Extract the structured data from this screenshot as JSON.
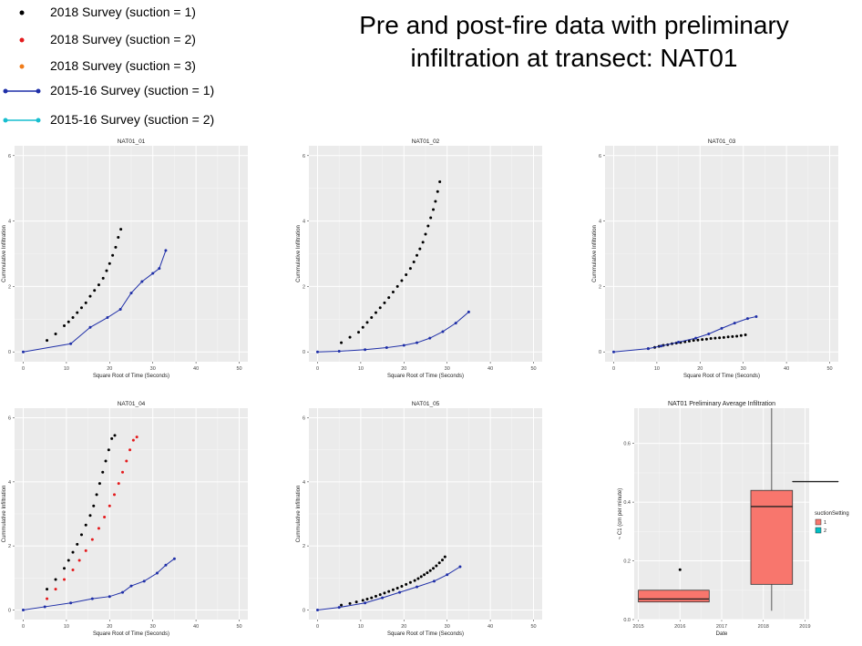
{
  "title": {
    "line1": "Pre and post-fire data with preliminary",
    "line2": "infiltration at transect: NAT01"
  },
  "legend": [
    {
      "label": "2018 Survey (suction = 1)",
      "color": "#000000",
      "style": "dot"
    },
    {
      "label": "2018 Survey (suction = 2)",
      "color": "#e41a1c",
      "style": "dot"
    },
    {
      "label": "2018 Survey (suction = 3)",
      "color": "#f07c1a",
      "style": "dot"
    },
    {
      "label": "2015-16 Survey (suction = 1)",
      "color": "#1f2fa8",
      "style": "line"
    },
    {
      "label": "2015-16 Survey (suction = 2)",
      "color": "#17becf",
      "style": "line"
    }
  ],
  "chart_data": [
    {
      "type": "scatter",
      "title": "NAT01_01",
      "xlabel": "Square Root of Time (Seconds)",
      "ylabel": "Cummulative Infiltration",
      "xlim": [
        -2,
        52
      ],
      "ylim": [
        -0.3,
        6.3
      ],
      "xticks": [
        0,
        10,
        20,
        30,
        40,
        50
      ],
      "yticks": [
        0,
        2,
        4,
        6
      ],
      "series": [
        {
          "color": "#000000",
          "kind": "points",
          "x": [
            5.5,
            7.5,
            9.5,
            10.5,
            11.5,
            12.5,
            13.5,
            14.5,
            15.5,
            16.5,
            17.5,
            18.5,
            19.3,
            20.0,
            20.7,
            21.4,
            22.0,
            22.6
          ],
          "y": [
            0.35,
            0.55,
            0.8,
            0.92,
            1.05,
            1.2,
            1.35,
            1.5,
            1.7,
            1.88,
            2.05,
            2.25,
            2.48,
            2.7,
            2.95,
            3.2,
            3.5,
            3.75
          ]
        },
        {
          "color": "#1f2fa8",
          "kind": "line",
          "x": [
            0,
            11,
            15.5,
            19.5,
            22.5,
            25,
            27.5,
            30,
            31.5,
            33
          ],
          "y": [
            0.0,
            0.25,
            0.75,
            1.05,
            1.3,
            1.8,
            2.15,
            2.4,
            2.55,
            3.1
          ]
        }
      ]
    },
    {
      "type": "scatter",
      "title": "NAT01_02",
      "xlabel": "Square Root of Time (Seconds)",
      "ylabel": "Cummulative Infiltration",
      "xlim": [
        -2,
        52
      ],
      "ylim": [
        -0.3,
        6.3
      ],
      "xticks": [
        0,
        10,
        20,
        30,
        40,
        50
      ],
      "yticks": [
        0,
        2,
        4,
        6
      ],
      "series": [
        {
          "color": "#000000",
          "kind": "points",
          "x": [
            5.5,
            7.5,
            9.5,
            10.5,
            11.5,
            12.5,
            13.5,
            14.5,
            15.5,
            16.5,
            17.5,
            18.5,
            19.5,
            20.5,
            21.5,
            22.3,
            23.0,
            23.7,
            24.4,
            25.0,
            25.6,
            26.2,
            26.8,
            27.3,
            27.8,
            28.3
          ],
          "y": [
            0.28,
            0.45,
            0.6,
            0.75,
            0.9,
            1.05,
            1.2,
            1.35,
            1.5,
            1.66,
            1.83,
            2.0,
            2.18,
            2.36,
            2.55,
            2.75,
            2.95,
            3.15,
            3.35,
            3.6,
            3.85,
            4.1,
            4.35,
            4.6,
            4.9,
            5.2
          ]
        },
        {
          "color": "#1f2fa8",
          "kind": "line",
          "x": [
            0,
            5,
            11,
            16,
            20,
            23,
            26,
            29,
            32,
            35
          ],
          "y": [
            0.0,
            0.02,
            0.07,
            0.13,
            0.2,
            0.28,
            0.42,
            0.62,
            0.88,
            1.22
          ]
        }
      ]
    },
    {
      "type": "scatter",
      "title": "NAT01_03",
      "xlabel": "Square Root of Time (Seconds)",
      "ylabel": "Cummulative Infiltration",
      "xlim": [
        -2,
        52
      ],
      "ylim": [
        -0.3,
        6.3
      ],
      "xticks": [
        0,
        10,
        20,
        30,
        40,
        50
      ],
      "yticks": [
        0,
        2,
        4,
        6
      ],
      "series": [
        {
          "color": "#000000",
          "kind": "points",
          "x": [
            8,
            9.5,
            10.5,
            11.5,
            12.5,
            13.5,
            14.5,
            15.5,
            16.5,
            17.5,
            18.5,
            19.5,
            20.5,
            21.5,
            22.5,
            23.5,
            24.5,
            25.5,
            26.5,
            27.5,
            28.5,
            29.5,
            30.5
          ],
          "y": [
            0.1,
            0.14,
            0.17,
            0.2,
            0.22,
            0.25,
            0.27,
            0.29,
            0.31,
            0.33,
            0.35,
            0.36,
            0.38,
            0.39,
            0.41,
            0.42,
            0.43,
            0.44,
            0.46,
            0.47,
            0.48,
            0.5,
            0.52
          ]
        },
        {
          "color": "#1f2fa8",
          "kind": "line",
          "x": [
            0,
            8,
            11,
            15,
            19,
            22,
            25,
            28,
            31,
            33
          ],
          "y": [
            0.0,
            0.1,
            0.18,
            0.3,
            0.42,
            0.55,
            0.72,
            0.88,
            1.02,
            1.08
          ]
        }
      ]
    },
    {
      "type": "scatter",
      "title": "NAT01_04",
      "xlabel": "Square Root of Time (Seconds)",
      "ylabel": "Cummulative Infiltration",
      "xlim": [
        -2,
        52
      ],
      "ylim": [
        -0.3,
        6.3
      ],
      "xticks": [
        0,
        10,
        20,
        30,
        40,
        50
      ],
      "yticks": [
        0,
        2,
        4,
        6
      ],
      "series": [
        {
          "color": "#000000",
          "kind": "points",
          "x": [
            5.5,
            7.5,
            9.5,
            10.5,
            11.5,
            12.5,
            13.5,
            14.5,
            15.5,
            16.3,
            17.0,
            17.7,
            18.4,
            19.1,
            19.8,
            20.5,
            21.2
          ],
          "y": [
            0.65,
            0.95,
            1.3,
            1.55,
            1.8,
            2.05,
            2.35,
            2.65,
            2.95,
            3.25,
            3.6,
            3.95,
            4.3,
            4.65,
            5.0,
            5.35,
            5.45
          ]
        },
        {
          "color": "#e41a1c",
          "kind": "points",
          "x": [
            5.5,
            7.5,
            9.5,
            11.5,
            13,
            14.5,
            16,
            17.5,
            18.8,
            20.0,
            21.1,
            22.1,
            23.0,
            23.9,
            24.7,
            25.5,
            26.3
          ],
          "y": [
            0.35,
            0.65,
            0.95,
            1.25,
            1.55,
            1.85,
            2.2,
            2.55,
            2.9,
            3.25,
            3.6,
            3.95,
            4.3,
            4.65,
            5.0,
            5.3,
            5.4
          ]
        },
        {
          "color": "#1f2fa8",
          "kind": "line",
          "x": [
            0,
            5,
            11,
            16,
            20,
            23,
            25,
            28,
            31,
            33,
            35
          ],
          "y": [
            0.0,
            0.1,
            0.22,
            0.35,
            0.42,
            0.55,
            0.75,
            0.9,
            1.15,
            1.4,
            1.6
          ]
        }
      ]
    },
    {
      "type": "scatter",
      "title": "NAT01_05",
      "xlabel": "Square Root of Time (Seconds)",
      "ylabel": "Cummulative Infiltration",
      "xlim": [
        -2,
        52
      ],
      "ylim": [
        -0.3,
        6.3
      ],
      "xticks": [
        0,
        10,
        20,
        30,
        40,
        50
      ],
      "yticks": [
        0,
        2,
        4,
        6
      ],
      "series": [
        {
          "color": "#000000",
          "kind": "points",
          "x": [
            5.5,
            7.5,
            9.0,
            10.5,
            11.5,
            12.5,
            13.5,
            14.5,
            15.5,
            16.5,
            17.5,
            18.5,
            19.5,
            20.5,
            21.5,
            22.5,
            23.3,
            24.0,
            24.7,
            25.4,
            26.1,
            26.8,
            27.5,
            28.2,
            28.9,
            29.5
          ],
          "y": [
            0.15,
            0.2,
            0.25,
            0.3,
            0.34,
            0.38,
            0.43,
            0.48,
            0.53,
            0.58,
            0.63,
            0.68,
            0.74,
            0.8,
            0.86,
            0.92,
            0.98,
            1.04,
            1.1,
            1.16,
            1.23,
            1.3,
            1.38,
            1.47,
            1.56,
            1.66
          ]
        },
        {
          "color": "#1f2fa8",
          "kind": "line",
          "x": [
            0,
            5,
            11,
            15,
            19,
            23,
            27,
            30,
            33
          ],
          "y": [
            0.0,
            0.08,
            0.22,
            0.38,
            0.55,
            0.72,
            0.9,
            1.1,
            1.35
          ]
        }
      ]
    },
    {
      "type": "box",
      "title": "NAT01 Preliminary Average Infiltration",
      "xlabel": "Date",
      "ylabel": "~ C1 (cm per minute)",
      "xlim": [
        2014.9,
        2019.1
      ],
      "ylim": [
        0.0,
        0.72
      ],
      "xticks": [
        2015,
        2016,
        2017,
        2018,
        2019
      ],
      "yticks": [
        0.0,
        0.2,
        0.4,
        0.6
      ],
      "ytick_labels": [
        "0.0",
        "0.2",
        "0.4",
        "0.6"
      ],
      "legend_title": "suctionSetting",
      "legend_items": [
        {
          "label": "1",
          "color": "#f8766d"
        },
        {
          "label": "2",
          "color": "#00bfc4"
        }
      ],
      "boxes": [
        {
          "x_from": 2015.0,
          "x_to": 2016.7,
          "whisker_low": 0.06,
          "q1": 0.06,
          "median": 0.07,
          "q3": 0.1,
          "whisker_high": 0.1,
          "color": "#f8766d"
        },
        {
          "x_from": 2017.7,
          "x_to": 2018.7,
          "whisker_low": 0.03,
          "q1": 0.12,
          "median": 0.385,
          "q3": 0.44,
          "whisker_high": 0.72,
          "color": "#f8766d"
        },
        {
          "x_from": 2018.7,
          "x_to": 2019.8,
          "whisker_low": 0.47,
          "q1": 0.47,
          "median": 0.47,
          "q3": 0.47,
          "whisker_high": 0.47,
          "color": "#f8766d"
        }
      ],
      "outliers": [
        {
          "x": 2016.0,
          "y": 0.17
        }
      ]
    }
  ]
}
